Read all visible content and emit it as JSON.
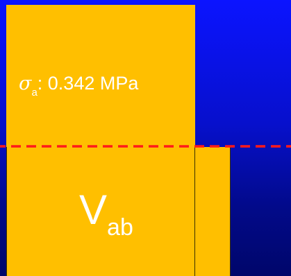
{
  "stress_label": {
    "symbol": "σ",
    "subscript": "a",
    "text": ": 0.342 MPa"
  },
  "volume_label": {
    "symbol": "V",
    "subscript": "ab"
  },
  "colors": {
    "background_top": "#0b14ff",
    "background_bottom": "#00066a",
    "block_fill": "#ffbf00",
    "dashed_line": "#ff1a1a",
    "text": "#ffffff"
  }
}
